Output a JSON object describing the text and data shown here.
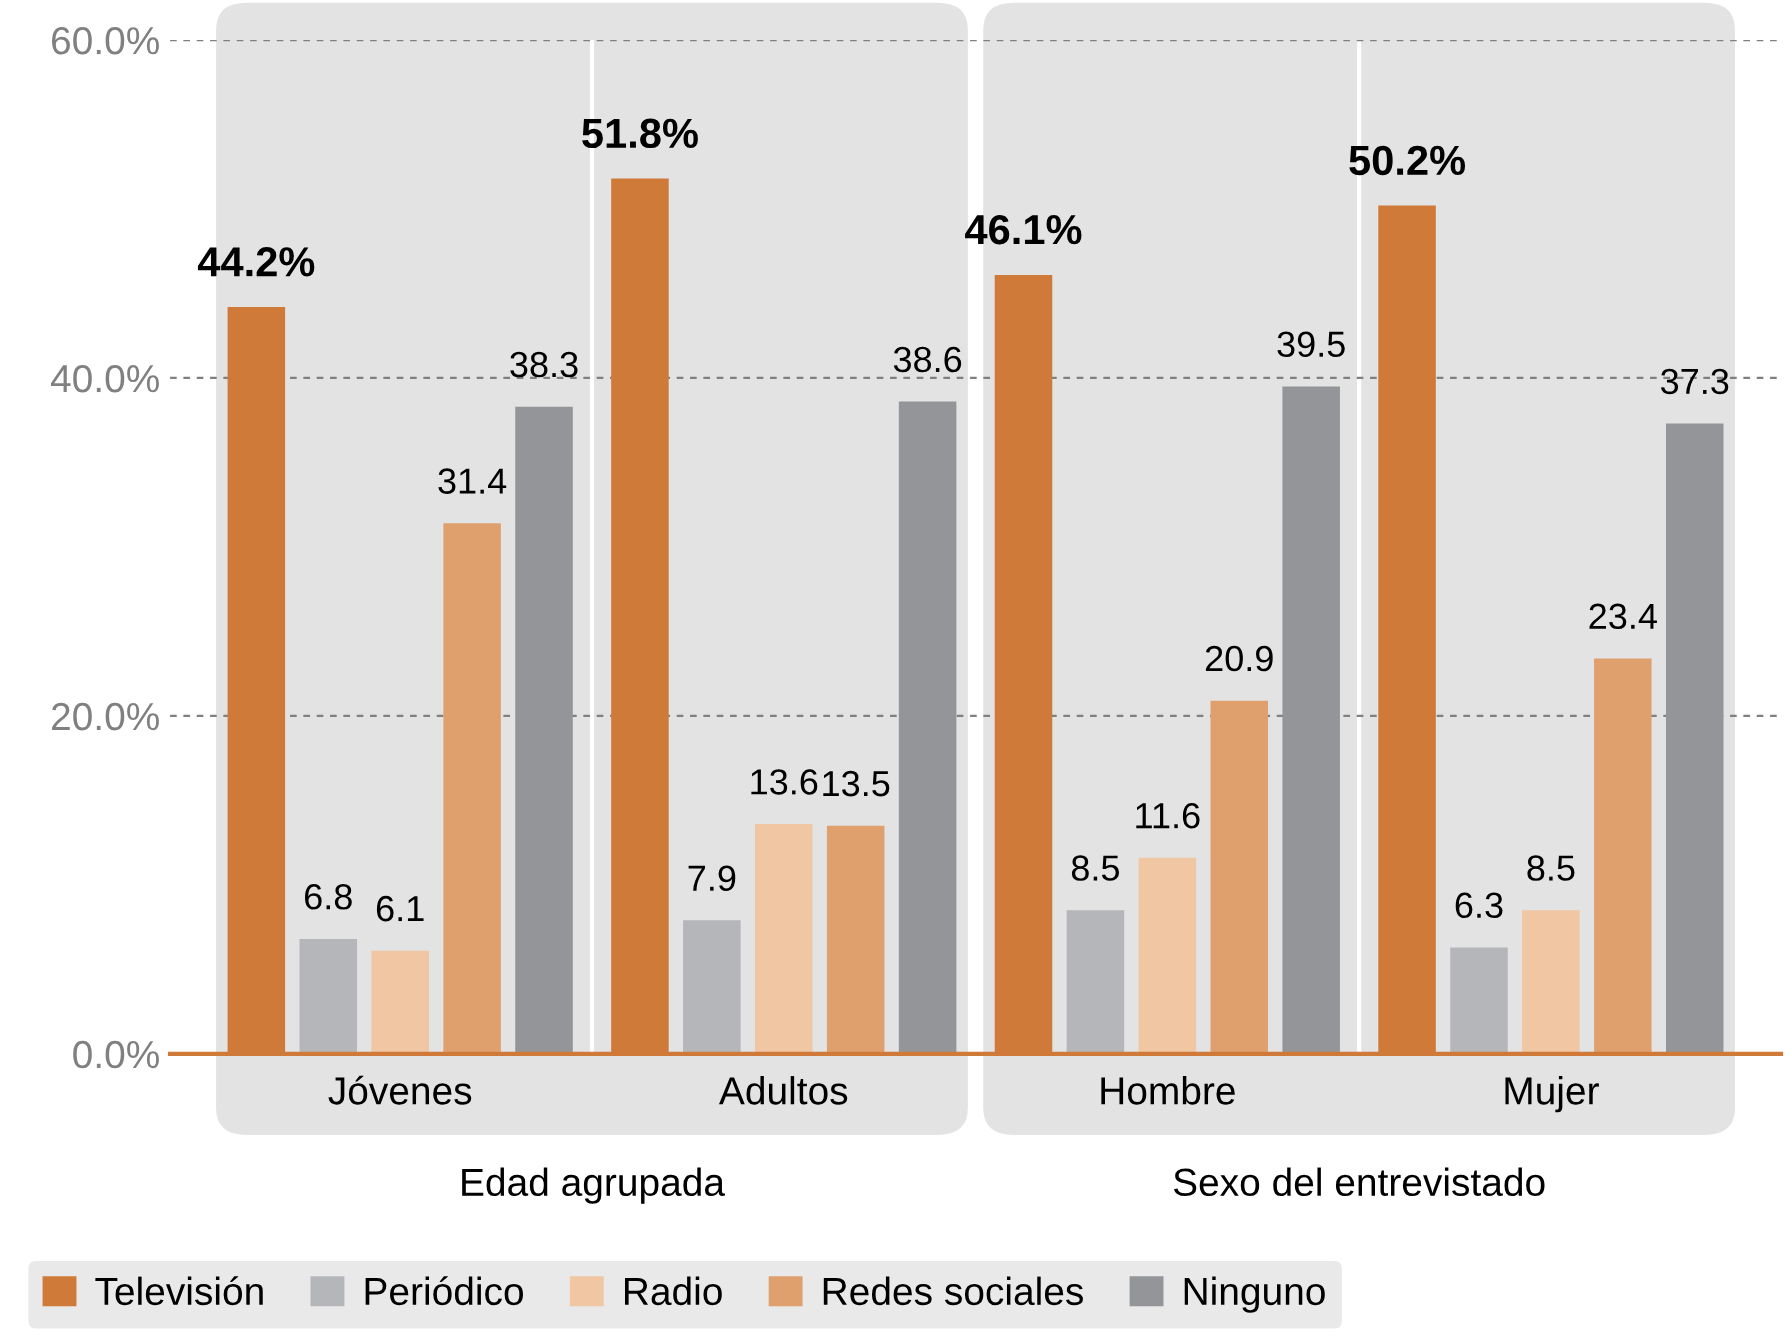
{
  "chart_data": {
    "type": "bar",
    "categories": [
      "Jóvenes",
      "Adultos",
      "Hombre",
      "Mujer"
    ],
    "series": [
      {
        "name": "Televisión",
        "color": "#d07a3a",
        "values": [
          44.2,
          51.8,
          46.1,
          50.2
        ],
        "value_labels": [
          "44.2%",
          "51.8%",
          "46.1%",
          "50.2%"
        ]
      },
      {
        "name": "Periódico",
        "color": "#b4b6b9",
        "values": [
          6.8,
          7.9,
          8.5,
          6.3
        ],
        "value_labels": [
          "6.8",
          "7.9",
          "8.5",
          "6.3"
        ]
      },
      {
        "name": "Radio",
        "color": "#f1c6a2",
        "values": [
          6.1,
          13.6,
          11.6,
          8.5
        ],
        "value_labels": [
          "6.1",
          "13.6",
          "11.6",
          "8.5"
        ]
      },
      {
        "name": "Redes sociales",
        "color": "#e0a06e",
        "values": [
          31.4,
          13.5,
          20.9,
          23.4
        ],
        "value_labels": [
          "31.4",
          "13.5",
          "20.9",
          "23.4"
        ]
      },
      {
        "name": "Ninguno",
        "color": "#939598",
        "values": [
          38.3,
          38.6,
          39.5,
          37.3
        ],
        "value_labels": [
          "38.3",
          "38.6",
          "39.5",
          "37.3"
        ]
      }
    ],
    "annotations": [
      "Edad agrupada",
      "Sexo del entrevistado"
    ],
    "ylim": [
      0,
      60
    ],
    "yticks": [
      {
        "value": 0,
        "label": "0.0%"
      },
      {
        "value": 20,
        "label": "20.0%"
      },
      {
        "value": 40,
        "label": "40.0%"
      },
      {
        "value": 60,
        "label": "60.0%"
      }
    ],
    "grid": "y",
    "legend": "bottom"
  }
}
